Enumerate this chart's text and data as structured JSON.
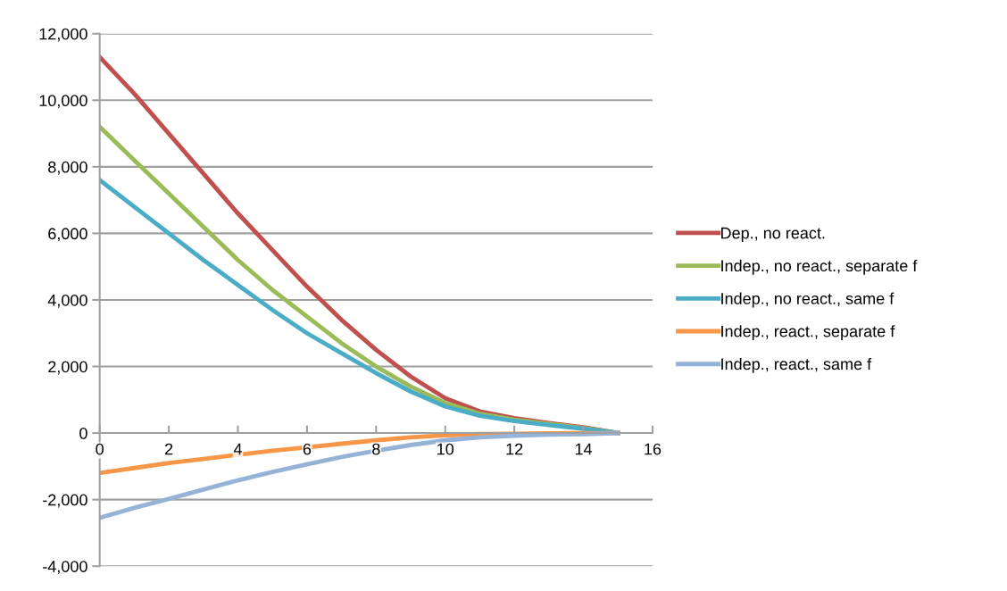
{
  "chart_data": {
    "type": "line",
    "x": [
      0,
      1,
      2,
      3,
      4,
      5,
      6,
      7,
      8,
      9,
      10,
      11,
      12,
      13,
      14,
      15
    ],
    "series": [
      {
        "name": "Dep., no react.",
        "color": "#c0504d",
        "values": [
          11300,
          10200,
          9000,
          7800,
          6600,
          5500,
          4400,
          3400,
          2500,
          1700,
          1050,
          650,
          450,
          300,
          170,
          0
        ]
      },
      {
        "name": "Indep., no react., separate f",
        "color": "#9bbb59",
        "values": [
          9200,
          8200,
          7200,
          6200,
          5200,
          4300,
          3500,
          2700,
          2000,
          1400,
          900,
          580,
          400,
          270,
          150,
          0
        ]
      },
      {
        "name": "Indep., no react., same f",
        "color": "#4bacc6",
        "values": [
          7600,
          6800,
          6000,
          5200,
          4450,
          3700,
          3000,
          2400,
          1800,
          1250,
          800,
          520,
          360,
          240,
          130,
          0
        ]
      },
      {
        "name": "Indep., react., separate f",
        "color": "#f79646",
        "values": [
          -1200,
          -1050,
          -900,
          -780,
          -650,
          -530,
          -430,
          -320,
          -220,
          -130,
          -70,
          -30,
          -20,
          -10,
          0,
          0
        ]
      },
      {
        "name": "Indep., react., same f",
        "color": "#95b3d7",
        "values": [
          -2550,
          -2250,
          -1980,
          -1700,
          -1420,
          -1170,
          -940,
          -720,
          -530,
          -360,
          -220,
          -130,
          -80,
          -50,
          -30,
          0
        ]
      }
    ],
    "xlim": [
      0,
      16
    ],
    "xticks": [
      0,
      2,
      4,
      6,
      8,
      10,
      12,
      14,
      16
    ],
    "ylim": [
      -4000,
      12000
    ],
    "yticks": [
      {
        "value": -4000,
        "label": "-4,000"
      },
      {
        "value": -2000,
        "label": "-2,000"
      },
      {
        "value": 0,
        "label": "0"
      },
      {
        "value": 2000,
        "label": "2,000"
      },
      {
        "value": 4000,
        "label": "4,000"
      },
      {
        "value": 6000,
        "label": "6,000"
      },
      {
        "value": 8000,
        "label": "8,000"
      },
      {
        "value": 10000,
        "label": "10,000"
      },
      {
        "value": 12000,
        "label": "12,000"
      }
    ],
    "grid": "y",
    "legend": "right",
    "marker": "none",
    "line_style": "solid"
  }
}
